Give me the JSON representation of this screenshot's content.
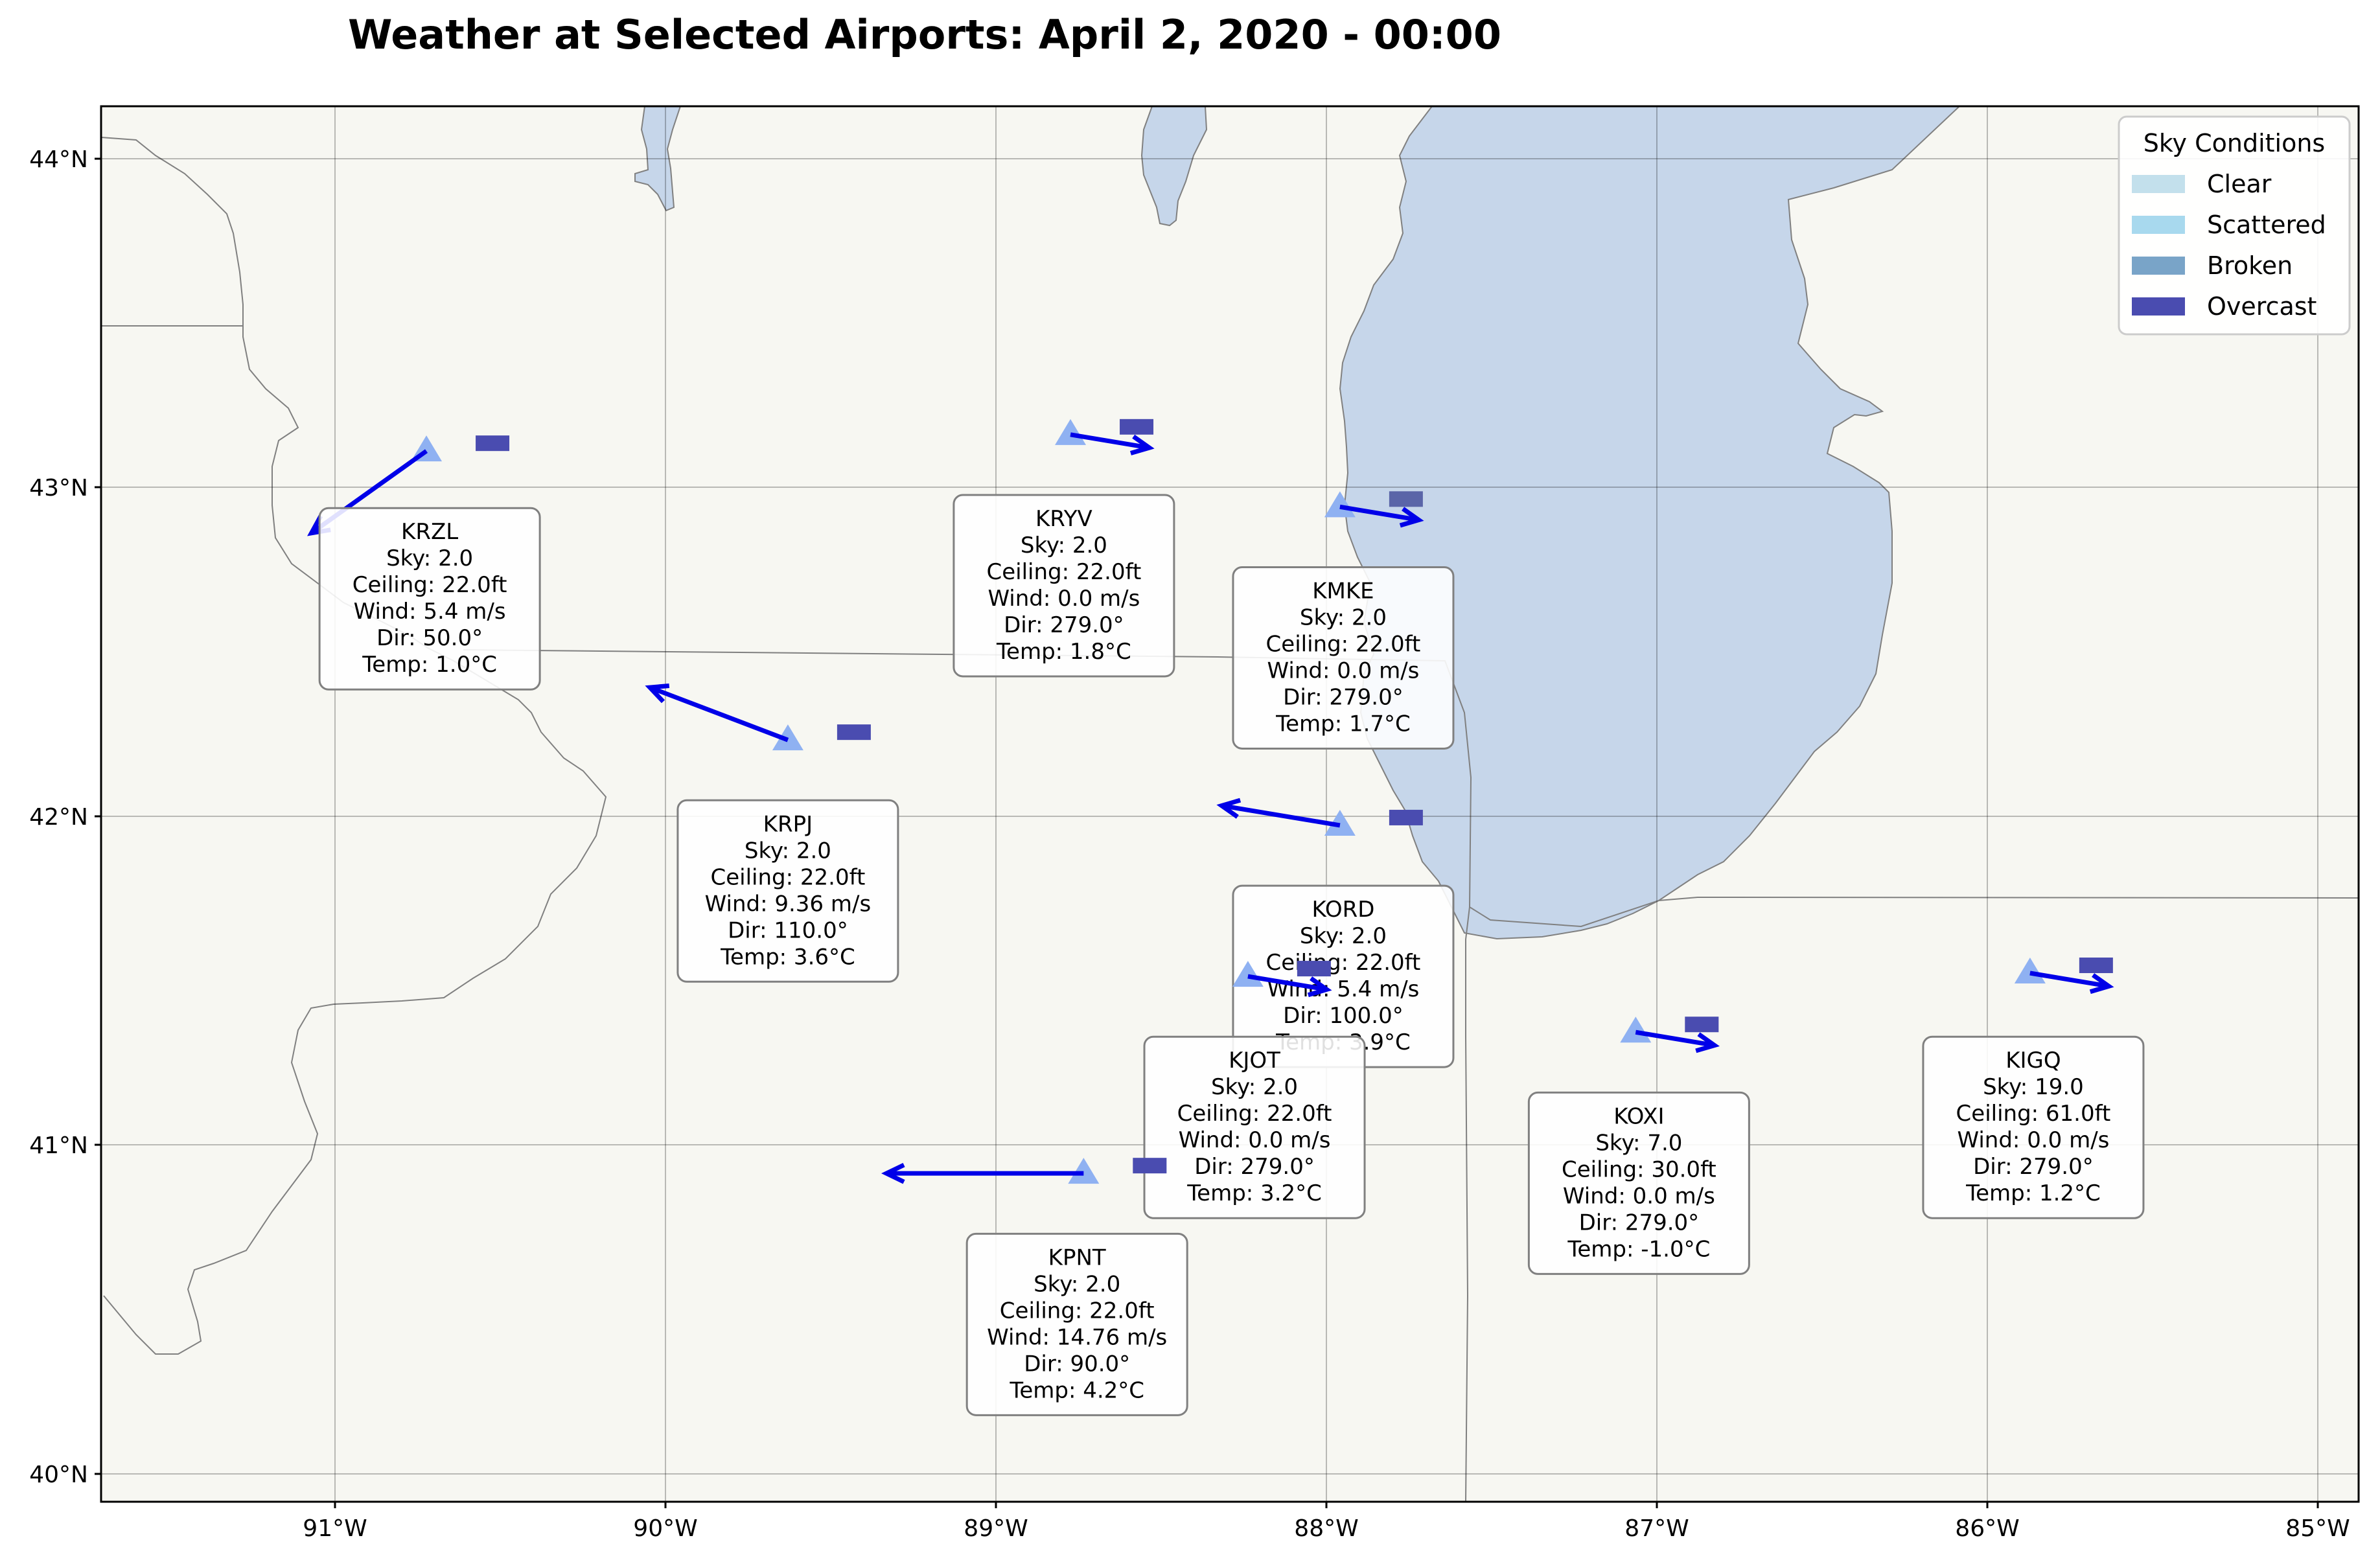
{
  "title": "Weather at Selected Airports: April 2, 2020 - 00:00",
  "map": {
    "lon_range": [
      -91.67,
      -84.8
    ],
    "lat_range": [
      39.92,
      44.17
    ],
    "x_ticks": [
      {
        "lon": -91,
        "label": "91°W"
      },
      {
        "lon": -90,
        "label": "90°W"
      },
      {
        "lon": -89,
        "label": "89°W"
      },
      {
        "lon": -88,
        "label": "88°W"
      },
      {
        "lon": -87,
        "label": "87°W"
      },
      {
        "lon": -86,
        "label": "86°W"
      },
      {
        "lon": -85,
        "label": "85°W"
      }
    ],
    "y_ticks": [
      {
        "lat": 44,
        "label": "44°N"
      },
      {
        "lat": 43,
        "label": "43°N"
      },
      {
        "lat": 42,
        "label": "42°N"
      },
      {
        "lat": 41,
        "label": "41°N"
      },
      {
        "lat": 40,
        "label": "40°N"
      }
    ],
    "colors": {
      "land": "#f7f7f2",
      "water": "#c6d6ea",
      "border": "#808080",
      "station_marker": "#8fb1f2",
      "wind_arrow": "#0000e8"
    }
  },
  "legend": {
    "title": "Sky Conditions",
    "items": [
      {
        "label": "Clear",
        "color": "#c3e0ec"
      },
      {
        "label": "Scattered",
        "color": "#a8d9ee"
      },
      {
        "label": "Broken",
        "color": "#79a4c8"
      },
      {
        "label": "Overcast",
        "color": "#4a4cb0"
      }
    ]
  },
  "stations": [
    {
      "id": "KRZL",
      "lon": -90.68,
      "lat": 43.12,
      "sky_label": "Sky: 2.0",
      "ceiling_label": "Ceiling: 22.0ft",
      "wind_label": "Wind: 5.4 m/s",
      "dir_label": "Dir: 50.0°",
      "temp_label": "Temp: 1.0°C",
      "arrow_to": [
        -91.03,
        42.87
      ],
      "sky_color": "#4a4cb0",
      "box_center": [
        -90.67,
        42.67
      ]
    },
    {
      "id": "KRYV",
      "lon": -88.72,
      "lat": 43.17,
      "sky_label": "Sky: 2.0",
      "ceiling_label": "Ceiling: 22.0ft",
      "wind_label": "Wind: 0.0 m/s",
      "dir_label": "Dir: 279.0°",
      "temp_label": "Temp: 1.8°C",
      "arrow_to": [
        -88.48,
        43.13
      ],
      "sky_color": "#4a4cb0",
      "box_center": [
        -88.74,
        42.71
      ]
    },
    {
      "id": "KMKE",
      "lon": -87.9,
      "lat": 42.95,
      "sky_label": "Sky: 2.0",
      "ceiling_label": "Ceiling: 22.0ft",
      "wind_label": "Wind: 0.0 m/s",
      "dir_label": "Dir: 279.0°",
      "temp_label": "Temp: 1.7°C",
      "arrow_to": [
        -87.66,
        42.91
      ],
      "sky_color": "#5a65a8",
      "box_center": [
        -87.89,
        42.49
      ]
    },
    {
      "id": "KRPJ",
      "lon": -89.58,
      "lat": 42.24,
      "sky_label": "Sky: 2.0",
      "ceiling_label": "Ceiling: 22.0ft",
      "wind_label": "Wind: 9.36 m/s",
      "dir_label": "Dir: 110.0°",
      "temp_label": "Temp: 3.6°C",
      "arrow_to": [
        -90.0,
        42.4
      ],
      "sky_color": "#4a4cb0",
      "box_center": [
        -89.58,
        41.78
      ]
    },
    {
      "id": "KORD",
      "lon": -87.9,
      "lat": 41.98,
      "sky_label": "Sky: 2.0",
      "ceiling_label": "Ceiling: 22.0ft",
      "wind_label": "Wind: 5.4 m/s",
      "dir_label": "Dir: 100.0°",
      "temp_label": "Temp: 3.9°C",
      "arrow_to": [
        -88.26,
        42.04
      ],
      "sky_color": "#4a4cb0",
      "box_center": [
        -87.89,
        41.52
      ]
    },
    {
      "id": "KJOT",
      "lon": -88.18,
      "lat": 41.52,
      "sky_label": "Sky: 2.0",
      "ceiling_label": "Ceiling: 22.0ft",
      "wind_label": "Wind: 0.0 m/s",
      "dir_label": "Dir: 279.0°",
      "temp_label": "Temp: 3.2°C",
      "arrow_to": [
        -87.94,
        41.48
      ],
      "sky_color": "#4a4cb0",
      "box_center": [
        -88.16,
        41.06
      ]
    },
    {
      "id": "KOXI",
      "lon": -87.0,
      "lat": 41.35,
      "sky_label": "Sky: 7.0",
      "ceiling_label": "Ceiling: 30.0ft",
      "wind_label": "Wind: 0.0 m/s",
      "dir_label": "Dir: 279.0°",
      "temp_label": "Temp: -1.0°C",
      "arrow_to": [
        -86.76,
        41.31
      ],
      "sky_color": "#4a4cb0",
      "box_center": [
        -86.99,
        40.89
      ]
    },
    {
      "id": "KIGQ",
      "lon": -85.8,
      "lat": 41.53,
      "sky_label": "Sky: 19.0",
      "ceiling_label": "Ceiling: 61.0ft",
      "wind_label": "Wind: 0.0 m/s",
      "dir_label": "Dir: 279.0°",
      "temp_label": "Temp: 1.2°C",
      "arrow_to": [
        -85.56,
        41.49
      ],
      "sky_color": "#4a4cb0",
      "box_center": [
        -85.79,
        41.06
      ]
    },
    {
      "id": "KPNT",
      "lon": -88.68,
      "lat": 40.92,
      "sky_label": "Sky: 2.0",
      "ceiling_label": "Ceiling: 22.0ft",
      "wind_label": "Wind: 14.76 m/s",
      "dir_label": "Dir: 90.0°",
      "temp_label": "Temp: 4.2°C",
      "arrow_to": [
        -89.28,
        40.92
      ],
      "sky_color": "#4a4cb0",
      "box_center": [
        -88.7,
        40.46
      ]
    }
  ]
}
